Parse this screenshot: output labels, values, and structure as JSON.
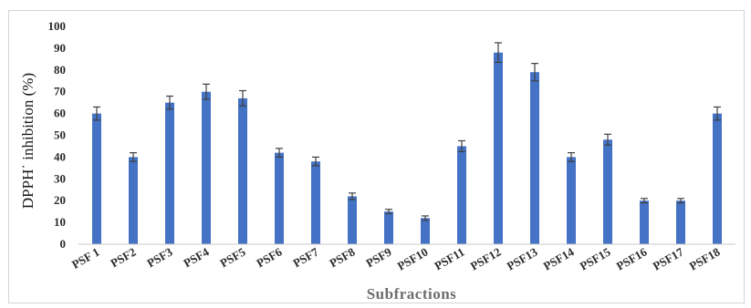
{
  "chart_data": {
    "type": "bar",
    "categories": [
      "PSF 1",
      "PSF2",
      "PSF3",
      "PSF4",
      "PSF5",
      "PSF6",
      "PSF7",
      "PSF8",
      "PSF9",
      "PSF10",
      "PSF11",
      "PSF12",
      "PSF13",
      "PSF14",
      "PSF15",
      "PSF16",
      "PSF17",
      "PSF18"
    ],
    "values": [
      60,
      40,
      65,
      70,
      67,
      42,
      38,
      22,
      15,
      12,
      45,
      88,
      79,
      40,
      48,
      20,
      20,
      60
    ],
    "errors": [
      3,
      2,
      3,
      3.5,
      3.5,
      2,
      2,
      1.5,
      1,
      1,
      2.5,
      4.5,
      4,
      2,
      2.5,
      1,
      1,
      3
    ],
    "xlabel": "Subfractions",
    "ylabel": "DPPH˙ inhibition (%)",
    "ylim": [
      0,
      100
    ],
    "yticks": [
      0,
      10,
      20,
      30,
      40,
      50,
      60,
      70,
      80,
      90,
      100
    ],
    "grid": false,
    "bar_color": "#4472c4",
    "error_color": "#404040"
  }
}
